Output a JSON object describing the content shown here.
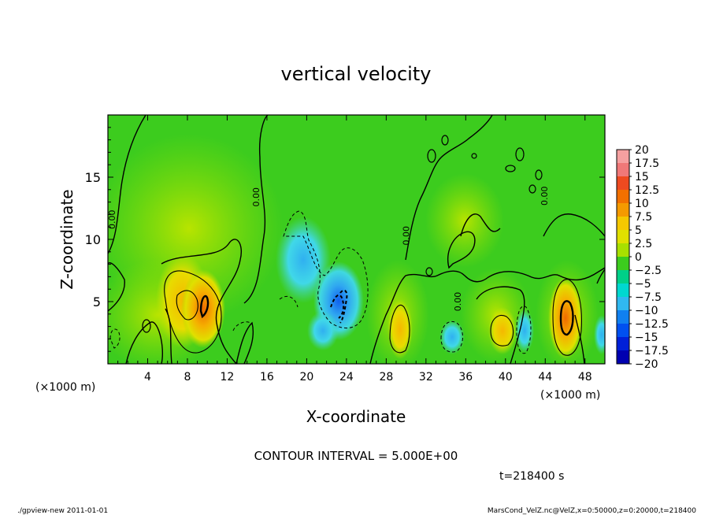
{
  "chart_data": {
    "type": "heatmap",
    "title": "vertical velocity",
    "xlabel": "X-coordinate",
    "ylabel": "Z-coordinate",
    "x_unit_label": "(×1000 m)",
    "y_unit_label": "(×1000 m)",
    "xlim": [
      0,
      50
    ],
    "ylim": [
      0,
      20
    ],
    "x_ticks": [
      "4",
      "8",
      "12",
      "16",
      "20",
      "24",
      "28",
      "32",
      "36",
      "40",
      "44",
      "48"
    ],
    "y_ticks": [
      "5",
      "10",
      "15"
    ],
    "colorbar_labels": [
      "20",
      "17.5",
      "15",
      "12.5",
      "10",
      "7.5",
      "5",
      "2.5",
      "0",
      "−2.5",
      "−5",
      "−7.5",
      "−10",
      "−12.5",
      "−15",
      "−17.5",
      "−20"
    ],
    "colorbar_colors": [
      "#f5a0a0",
      "#f07878",
      "#ee4a20",
      "#f27000",
      "#f59a00",
      "#f5c800",
      "#e0e000",
      "#a8e000",
      "#3ccc1e",
      "#00d088",
      "#00d8d0",
      "#30b8f0",
      "#1080f0",
      "#0050f0",
      "#0020d8",
      "#0000b0",
      "#6a00b8"
    ],
    "contour_interval_text": "CONTOUR INTERVAL = 5.000E+00",
    "time_text": "t=218400  s",
    "contour_labels": [
      {
        "text": "0.00",
        "x": 0.7,
        "z": 11.6
      },
      {
        "text": "0.00",
        "x": 15.2,
        "z": 13.4
      },
      {
        "text": "0.00",
        "x": 30.3,
        "z": 10.3
      },
      {
        "text": "0.00",
        "x": 35.5,
        "z": 5.0
      },
      {
        "text": "0.00",
        "x": 44.2,
        "z": 13.5
      }
    ],
    "warm_cells": [
      {
        "x": 7.8,
        "z": 5.3,
        "level": 2.5
      },
      {
        "x": 9.6,
        "z": 4.6,
        "level": 7.5
      },
      {
        "x": 29.7,
        "z": 2.8,
        "level": 5
      },
      {
        "x": 39.8,
        "z": 2.6,
        "level": 5
      },
      {
        "x": 46.0,
        "z": 3.6,
        "level": 12.5
      }
    ],
    "cold_cells": [
      {
        "x": 19.5,
        "z": 7.0,
        "level": -5
      },
      {
        "x": 23.0,
        "z": 4.8,
        "level": -10
      },
      {
        "x": 34.0,
        "z": 2.0,
        "level": -5
      },
      {
        "x": 42.2,
        "z": 3.0,
        "level": -5
      },
      {
        "x": 49.6,
        "z": 2.4,
        "level": -5
      }
    ]
  },
  "footer": {
    "left": "./gpview-new   2011-01-01",
    "right": "MarsCond_VelZ.nc@VelZ,x=0:50000,z=0:20000,t=218400"
  }
}
